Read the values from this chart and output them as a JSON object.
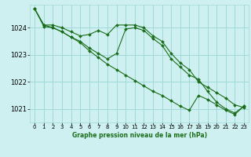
{
  "title": "Graphe pression niveau de la mer (hPa)",
  "bg_color": "#cff0f0",
  "grid_color": "#a0d8d8",
  "line_color": "#1a6e1a",
  "marker_color": "#1a6e1a",
  "xlim": [
    -0.5,
    23.5
  ],
  "ylim": [
    1020.5,
    1024.85
  ],
  "yticks": [
    1021,
    1022,
    1023,
    1024
  ],
  "xticks": [
    0,
    1,
    2,
    3,
    4,
    5,
    6,
    7,
    8,
    9,
    10,
    11,
    12,
    13,
    14,
    15,
    16,
    17,
    18,
    19,
    20,
    21,
    22,
    23
  ],
  "series1_x": [
    0,
    1,
    2,
    3,
    4,
    5,
    6,
    7,
    8,
    9,
    10,
    11,
    12,
    13,
    14,
    15,
    16,
    17,
    18,
    19,
    20,
    21,
    22,
    23
  ],
  "series1_y": [
    1024.7,
    1024.1,
    1024.1,
    1024.0,
    1023.85,
    1023.7,
    1023.75,
    1023.9,
    1023.75,
    1024.1,
    1024.1,
    1024.1,
    1024.0,
    1023.7,
    1023.5,
    1023.05,
    1022.7,
    1022.45,
    1022.0,
    1021.8,
    1021.6,
    1021.4,
    1021.15,
    1021.05
  ],
  "series2_x": [
    0,
    1,
    2,
    3,
    4,
    5,
    6,
    7,
    8,
    9,
    10,
    11,
    12,
    13,
    14,
    15,
    16,
    17,
    18,
    19,
    20,
    21,
    22,
    23
  ],
  "series2_y": [
    1024.7,
    1024.1,
    1024.0,
    1023.85,
    1023.65,
    1023.5,
    1023.25,
    1023.05,
    1022.85,
    1023.05,
    1023.95,
    1024.0,
    1023.9,
    1023.6,
    1023.35,
    1022.85,
    1022.55,
    1022.25,
    1022.1,
    1021.65,
    1021.25,
    1021.0,
    1020.85,
    1021.1
  ],
  "series3_x": [
    0,
    1,
    2,
    3,
    4,
    5,
    6,
    7,
    8,
    9,
    10,
    11,
    12,
    13,
    14,
    15,
    16,
    17,
    18,
    19,
    20,
    21,
    22,
    23
  ],
  "series3_y": [
    1024.7,
    1024.05,
    1024.0,
    1023.85,
    1023.65,
    1023.45,
    1023.15,
    1022.9,
    1022.65,
    1022.45,
    1022.25,
    1022.05,
    1021.85,
    1021.65,
    1021.5,
    1021.3,
    1021.1,
    1020.95,
    1021.5,
    1021.35,
    1021.15,
    1020.95,
    1020.8,
    1021.1
  ]
}
